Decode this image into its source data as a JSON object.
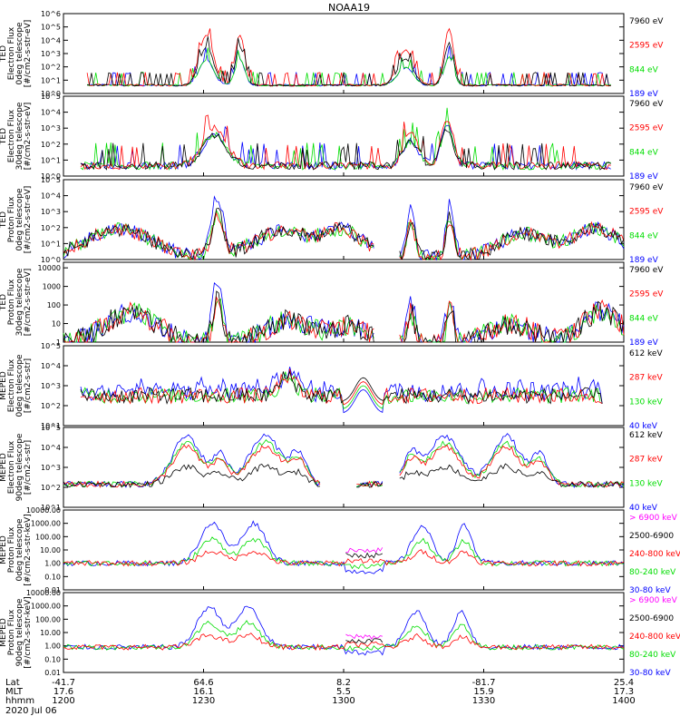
{
  "chart_data": {
    "type": "line",
    "title": "NOAA19",
    "date": "2020 Jul 06",
    "x_axis": {
      "label_rows": [
        "Lat",
        "MLT",
        "hhmm"
      ],
      "ticks": [
        {
          "lat": "-41.7",
          "mlt": "17.6",
          "hhmm": "1200"
        },
        {
          "lat": "64.6",
          "mlt": "16.1",
          "hhmm": "1230"
        },
        {
          "lat": "8.2",
          "mlt": "5.5",
          "hhmm": "1300"
        },
        {
          "lat": "-81.7",
          "mlt": "15.9",
          "hhmm": "1330"
        },
        {
          "lat": "25.4",
          "mlt": "17.3",
          "hhmm": "1400"
        }
      ]
    },
    "panels": [
      {
        "ylabel": [
          "TED",
          "Electron Flux",
          "0deg telescope",
          "[#/cm2-s-str-eV]"
        ],
        "scale": "log",
        "ytick_labels": [
          "10^0",
          "10^1",
          "10^2",
          "10^3",
          "10^4",
          "10^5",
          "10^6"
        ],
        "ylim_exp": [
          0,
          6
        ],
        "profile": "ted_e0",
        "series": [
          {
            "name": "7960 eV",
            "color": "#000000"
          },
          {
            "name": "2595 eV",
            "color": "#ff0000"
          },
          {
            "name": "844 eV",
            "color": "#00dd00"
          },
          {
            "name": "189 eV",
            "color": "#0000ff"
          }
        ]
      },
      {
        "ylabel": [
          "TED",
          "Electron Flux",
          "30deg telescope",
          "[#/cm2-s-str-eV]"
        ],
        "scale": "log",
        "ytick_labels": [
          "10^0",
          "10^1",
          "10^2",
          "10^3",
          "10^4",
          "10^5"
        ],
        "ylim_exp": [
          0,
          5
        ],
        "profile": "ted_e30",
        "series": [
          {
            "name": "7960 eV",
            "color": "#000000"
          },
          {
            "name": "2595 eV",
            "color": "#ff0000"
          },
          {
            "name": "844 eV",
            "color": "#00dd00"
          },
          {
            "name": "189 eV",
            "color": "#0000ff"
          }
        ]
      },
      {
        "ylabel": [
          "TED",
          "Proton Flux",
          "0deg telescope",
          "[#/cm2-s-str-eV]"
        ],
        "scale": "log",
        "ytick_labels": [
          "10^0",
          "10^1",
          "10^2",
          "10^3",
          "10^4",
          "10^5"
        ],
        "ylim_exp": [
          0,
          5
        ],
        "profile": "ted_p0",
        "series": [
          {
            "name": "7960 eV",
            "color": "#000000"
          },
          {
            "name": "2595 eV",
            "color": "#ff0000"
          },
          {
            "name": "844 eV",
            "color": "#00dd00"
          },
          {
            "name": "189 eV",
            "color": "#0000ff"
          }
        ]
      },
      {
        "ylabel": [
          "TED",
          "Proton Flux",
          "30deg telescope",
          "[#/cm2-s-str-eV]"
        ],
        "scale": "log",
        "ytick_labels": [
          "1",
          "10",
          "100",
          "1000",
          "10000"
        ],
        "ylim_exp": [
          0,
          4.3
        ],
        "profile": "ted_p30",
        "series": [
          {
            "name": "7960 eV",
            "color": "#000000"
          },
          {
            "name": "2595 eV",
            "color": "#ff0000"
          },
          {
            "name": "844 eV",
            "color": "#00dd00"
          },
          {
            "name": "189 eV",
            "color": "#0000ff"
          }
        ]
      },
      {
        "ylabel": [
          "MEPED",
          "Electron Flux",
          "0deg telescope",
          "[#/cm2-s-str]"
        ],
        "scale": "log",
        "ytick_labels": [
          "10^1",
          "10^2",
          "10^3",
          "10^4",
          "10^5"
        ],
        "ylim_exp": [
          1,
          5
        ],
        "profile": "meped_e0",
        "series": [
          {
            "name": "612 keV",
            "color": "#000000"
          },
          {
            "name": "287 keV",
            "color": "#ff0000"
          },
          {
            "name": "130 keV",
            "color": "#00dd00"
          },
          {
            "name": "40 keV",
            "color": "#0000ff"
          }
        ]
      },
      {
        "ylabel": [
          "MEPED",
          "Electron Flux",
          "90deg telescope",
          "[#/cm2-s-str]"
        ],
        "scale": "log",
        "ytick_labels": [
          "10^1",
          "10^2",
          "10^3",
          "10^4",
          "10^5"
        ],
        "ylim_exp": [
          1,
          5
        ],
        "profile": "meped_e90",
        "series": [
          {
            "name": "612 keV",
            "color": "#000000"
          },
          {
            "name": "287 keV",
            "color": "#ff0000"
          },
          {
            "name": "130 keV",
            "color": "#00dd00"
          },
          {
            "name": "40 keV",
            "color": "#0000ff"
          }
        ]
      },
      {
        "ylabel": [
          "MEPED",
          "Proton Flux",
          "0deg telescope",
          "[#/cm2-s-str-keV]"
        ],
        "scale": "log",
        "ytick_labels": [
          "0.01",
          "0.10",
          "1.00",
          "10.00",
          "100.00",
          "1000.00",
          "10000.00"
        ],
        "ylim_exp": [
          -2,
          4
        ],
        "profile": "meped_p0",
        "series": [
          {
            "name": "> 6900 keV",
            "color": "#ff00ff"
          },
          {
            "name": "2500-6900",
            "color": "#000000"
          },
          {
            "name": "240-800 keV",
            "color": "#ff0000"
          },
          {
            "name": "80-240 keV",
            "color": "#00dd00"
          },
          {
            "name": "30-80 keV",
            "color": "#0000ff"
          }
        ]
      },
      {
        "ylabel": [
          "MEPED",
          "Proton Flux",
          "90deg telescope",
          "[#/cm2-s-str-keV]"
        ],
        "scale": "log",
        "ytick_labels": [
          "0.01",
          "0.10",
          "1.00",
          "10.00",
          "100.00",
          "1000.00",
          "10000.00"
        ],
        "ylim_exp": [
          -2,
          4
        ],
        "profile": "meped_p90",
        "series": [
          {
            "name": "> 6900 keV",
            "color": "#ff00ff"
          },
          {
            "name": "2500-6900",
            "color": "#000000"
          },
          {
            "name": "240-800 keV",
            "color": "#ff0000"
          },
          {
            "name": "80-240 keV",
            "color": "#00dd00"
          },
          {
            "name": "30-80 keV",
            "color": "#0000ff"
          }
        ]
      }
    ]
  }
}
